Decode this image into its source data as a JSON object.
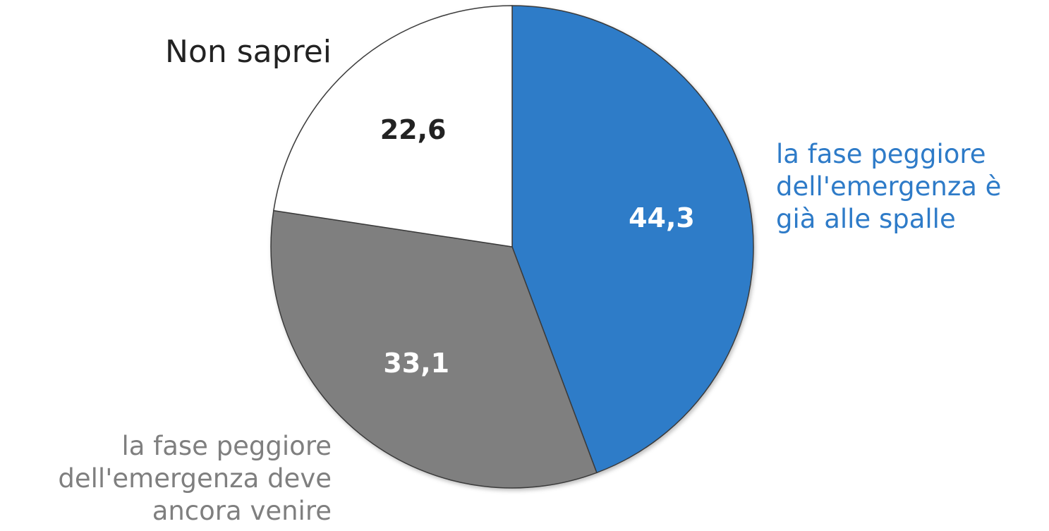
{
  "chart_data": {
    "type": "pie",
    "categories": [
      "la fase peggiore\ndell'emergenza è\ngià alle spalle",
      "la fase peggiore\ndell'emergenza deve\nancora venire",
      "Non saprei"
    ],
    "values": [
      44.3,
      33.1,
      22.6
    ],
    "value_labels": [
      "44,3",
      "33,1",
      "22,6"
    ],
    "colors": [
      "#2E7BC8",
      "#7F7F7F",
      "#FFFFFF"
    ],
    "label_colors": [
      "#2E7BC8",
      "#7F7F7F",
      "#222222"
    ],
    "value_label_colors": [
      "#FFFFFF",
      "#FFFFFF",
      "#222222"
    ],
    "start_angle": "12 o'clock",
    "direction": "clockwise",
    "legend": "none (categories labelled next to slices)"
  }
}
